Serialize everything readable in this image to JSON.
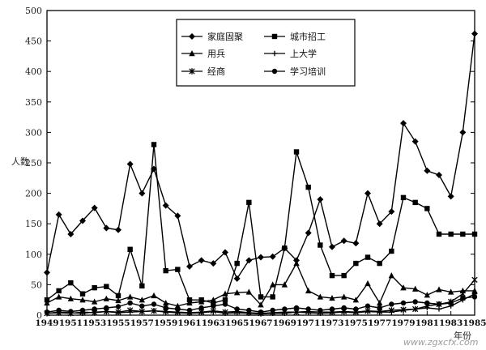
{
  "chart_data": {
    "type": "line",
    "title": "",
    "xlabel": "年份",
    "ylabel": "人数",
    "ylim": [
      0,
      500
    ],
    "yticks": [
      0,
      50,
      100,
      150,
      200,
      250,
      300,
      350,
      400,
      450,
      500
    ],
    "x_tick_labels": [
      "1949",
      "1951",
      "1953",
      "1955",
      "1957",
      "1959",
      "1961",
      "1963",
      "1965",
      "1967",
      "1969",
      "1971",
      "1973",
      "1975",
      "1977",
      "1979",
      "1981",
      "1983",
      "1985"
    ],
    "grid": false,
    "legend_position": "top-right",
    "x": [
      1949,
      1950,
      1951,
      1952,
      1953,
      1954,
      1955,
      1956,
      1957,
      1958,
      1959,
      1960,
      1961,
      1962,
      1963,
      1964,
      1965,
      1966,
      1967,
      1968,
      1969,
      1970,
      1971,
      1972,
      1973,
      1974,
      1975,
      1976,
      1977,
      1978,
      1979,
      1980,
      1981,
      1982,
      1983,
      1984,
      1985
    ],
    "series": [
      {
        "name": "家庭固聚",
        "marker": "diamond",
        "values": [
          70,
          165,
          133,
          155,
          176,
          143,
          140,
          248,
          200,
          240,
          180,
          163,
          80,
          90,
          85,
          103,
          60,
          90,
          95,
          96,
          110,
          90,
          135,
          190,
          112,
          122,
          118,
          200,
          150,
          170,
          315,
          285,
          237,
          230,
          195,
          300,
          462
        ]
      },
      {
        "name": "城市招工",
        "marker": "square",
        "values": [
          25,
          40,
          53,
          35,
          45,
          47,
          32,
          108,
          48,
          280,
          73,
          75,
          25,
          25,
          20,
          25,
          85,
          185,
          30,
          30,
          110,
          268,
          210,
          115,
          65,
          65,
          85,
          95,
          85,
          105,
          193,
          185,
          175,
          133,
          133,
          133,
          133
        ]
      },
      {
        "name": "用兵",
        "marker": "triangle",
        "values": [
          20,
          30,
          27,
          25,
          22,
          27,
          24,
          30,
          25,
          32,
          20,
          15,
          20,
          22,
          25,
          35,
          37,
          38,
          17,
          50,
          50,
          85,
          40,
          30,
          28,
          30,
          25,
          52,
          20,
          65,
          45,
          43,
          33,
          42,
          38,
          40,
          40
        ]
      },
      {
        "name": "上大学",
        "marker": "cross",
        "values": [
          3,
          5,
          4,
          3,
          5,
          6,
          4,
          5,
          6,
          7,
          5,
          4,
          3,
          4,
          6,
          3,
          4,
          3,
          2,
          3,
          3,
          5,
          4,
          3,
          4,
          5,
          4,
          6,
          5,
          5,
          8,
          10,
          12,
          10,
          15,
          25,
          35
        ]
      },
      {
        "name": "经商",
        "marker": "star",
        "values": [
          3,
          4,
          3,
          5,
          4,
          6,
          5,
          8,
          6,
          7,
          6,
          5,
          4,
          5,
          7,
          5,
          6,
          4,
          3,
          4,
          5,
          5,
          6,
          5,
          5,
          6,
          5,
          7,
          6,
          8,
          9,
          10,
          15,
          18,
          22,
          35,
          58
        ]
      },
      {
        "name": "学习培训",
        "marker": "circle",
        "values": [
          5,
          8,
          6,
          8,
          10,
          12,
          14,
          20,
          15,
          18,
          12,
          10,
          8,
          12,
          15,
          18,
          10,
          8,
          5,
          8,
          10,
          12,
          10,
          8,
          10,
          12,
          10,
          15,
          12,
          18,
          20,
          22,
          20,
          18,
          20,
          28,
          30
        ]
      }
    ]
  },
  "watermark_text": "www.zgxcfx.com"
}
